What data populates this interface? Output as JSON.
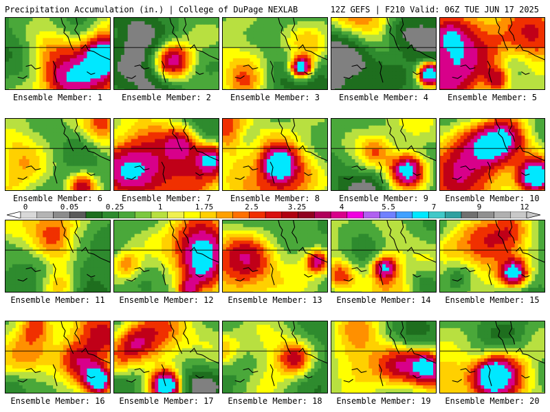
{
  "header": {
    "title_left": "Precipitation Accumulation (in.) | College of DuPage NEXLAB",
    "title_right": "12Z GEFS | F210 Valid: 06Z TUE JUN 17 2025"
  },
  "members": [
    {
      "label": "Ensemble Member: 1"
    },
    {
      "label": "Ensemble Member: 2"
    },
    {
      "label": "Ensemble Member: 3"
    },
    {
      "label": "Ensemble Member: 4"
    },
    {
      "label": "Ensemble Member: 5"
    },
    {
      "label": "Ensemble Member: 6"
    },
    {
      "label": "Ensemble Member: 7"
    },
    {
      "label": "Ensemble Member: 8"
    },
    {
      "label": "Ensemble Member: 9"
    },
    {
      "label": "Ensemble Member: 10"
    },
    {
      "label": "Ensemble Member: 11"
    },
    {
      "label": "Ensemble Member: 12"
    },
    {
      "label": "Ensemble Member: 13"
    },
    {
      "label": "Ensemble Member: 14"
    },
    {
      "label": "Ensemble Member: 15"
    },
    {
      "label": "Ensemble Member: 16"
    },
    {
      "label": "Ensemble Member: 17"
    },
    {
      "label": "Ensemble Member: 18"
    },
    {
      "label": "Ensemble Member: 19"
    },
    {
      "label": "Ensemble Member: 20"
    }
  ],
  "legend": {
    "tick_labels": [
      "0",
      "0.05",
      "0.25",
      "1",
      "1.75",
      "2.5",
      "3.25",
      "4",
      "5.5",
      "7",
      "9",
      "12"
    ],
    "colors": [
      "#d8d8d8",
      "#b4b4b4",
      "#8c8c8c",
      "#5a5a5a",
      "#1e6e1e",
      "#2e8b2e",
      "#4aa83a",
      "#7cc840",
      "#b8e040",
      "#f0f050",
      "#ffff00",
      "#ffd000",
      "#ffa000",
      "#ff7000",
      "#f03000",
      "#d81010",
      "#b00010",
      "#900020",
      "#b0005a",
      "#d8008a",
      "#f000e0",
      "#b060f0",
      "#7080ff",
      "#40a0ff",
      "#00e8ff",
      "#40c8c8",
      "#30a0a0",
      "#707070",
      "#909090",
      "#b0b0b0",
      "#c8c8c8"
    ]
  },
  "field_palette": [
    "#808080",
    "#1e6e1e",
    "#2e8b2e",
    "#4aa83a",
    "#b8e040",
    "#ffff00",
    "#ffd000",
    "#ff9000",
    "#f03000",
    "#c00018",
    "#d8008a",
    "#00e8ff"
  ]
}
